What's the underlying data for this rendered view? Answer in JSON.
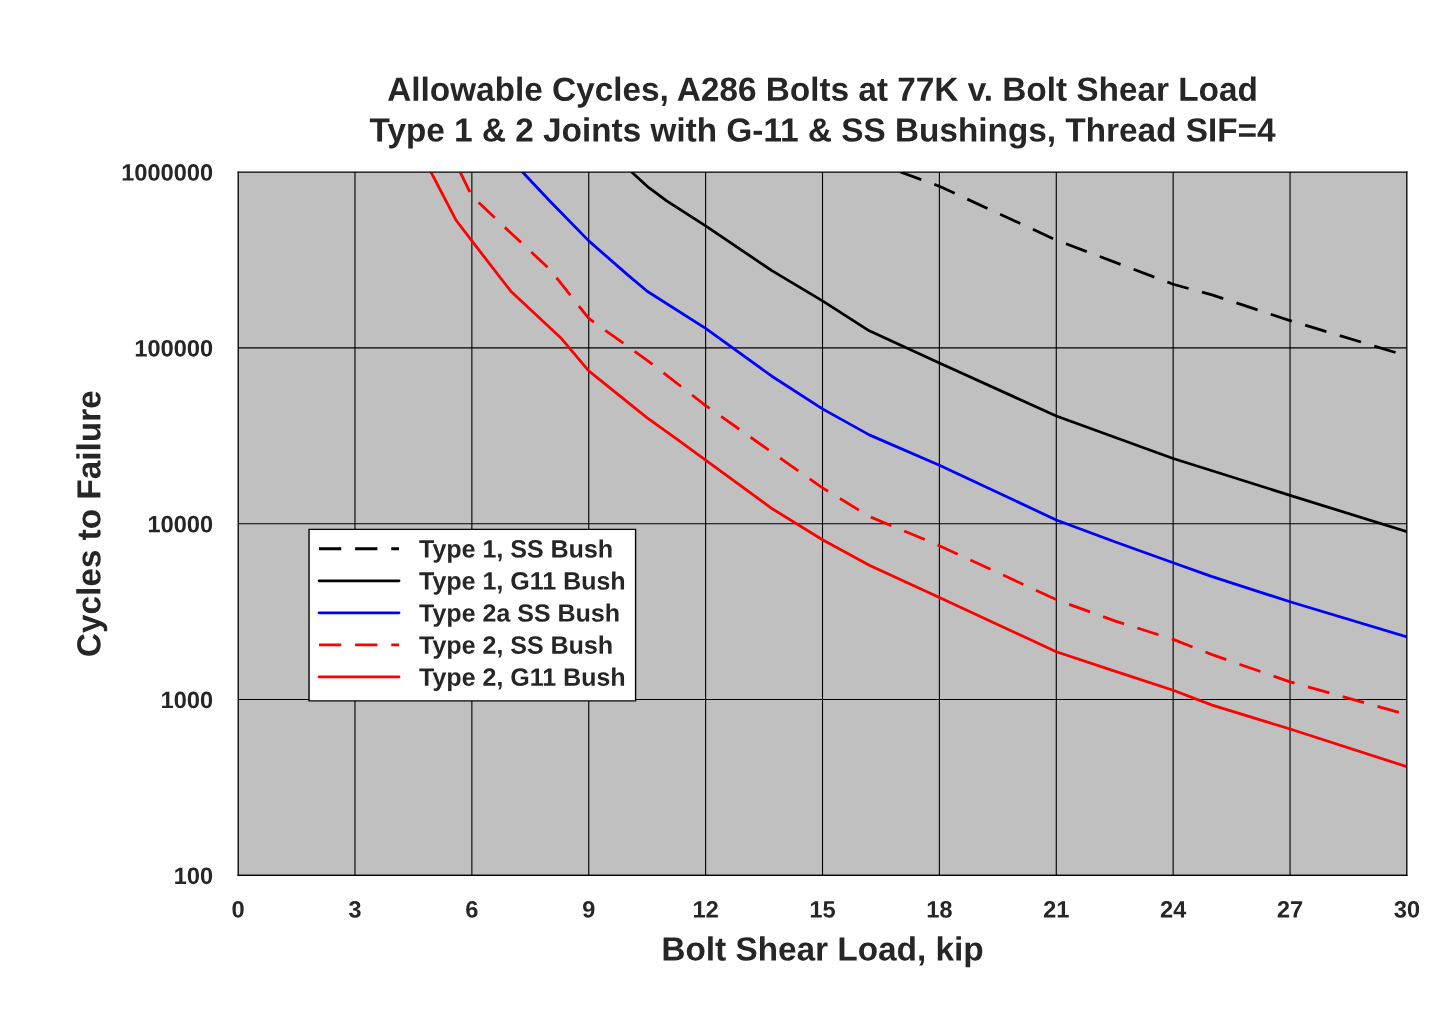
{
  "chart_data": {
    "type": "line",
    "title": "Allowable Cycles, A286 Bolts at 77K v. Bolt Shear Load\nType 1 & 2 Joints with G-11 & SS Bushings, Thread SIF=4",
    "xlabel": "Bolt Shear Load, kip",
    "ylabel": "Cycles to Failure",
    "log": "y",
    "grid": true,
    "legend": "center left",
    "xlim": [
      0,
      30
    ],
    "xticks": [
      0,
      3,
      6,
      9,
      12,
      15,
      18,
      21,
      24,
      27,
      30
    ],
    "ylim": [
      100,
      1000000
    ],
    "yticks": [
      100,
      1000,
      10000,
      100000,
      1000000
    ],
    "series": [
      {
        "name": "Type 1, SS Bush",
        "color": "#000000",
        "line_style": "dashed",
        "x": [
          17,
          18,
          21,
          24,
          25,
          27,
          30
        ],
        "values": [
          1000000,
          830000,
          410000,
          230000,
          200000,
          143000,
          90000
        ]
      },
      {
        "name": "Type 1, G11 Bush",
        "color": "#000000",
        "line_style": "solid",
        "x": [
          10.1,
          10.5,
          11,
          12,
          13.7,
          15,
          16.2,
          18,
          21,
          22.5,
          24,
          25,
          27,
          30
        ],
        "values": [
          1000000,
          830000,
          685000,
          494000,
          275000,
          185000,
          125000,
          82000,
          41000,
          31000,
          23500,
          20000,
          14500,
          9000
        ]
      },
      {
        "name": "Type 2a SS Bush",
        "color": "#0000ff",
        "line_style": "solid",
        "x": [
          7.3,
          8,
          9,
          10,
          10.5,
          12,
          13.7,
          15,
          16.2,
          18,
          21,
          22.5,
          24,
          25,
          27,
          30
        ],
        "values": [
          1000000,
          685000,
          406000,
          260000,
          210000,
          129000,
          69000,
          45000,
          32000,
          21500,
          10500,
          7900,
          6000,
          5000,
          3600,
          2270
        ]
      },
      {
        "name": "Type 2, SS Bush",
        "color": "#ff0000",
        "line_style": "dashed",
        "x": [
          5.7,
          6,
          7,
          8,
          9,
          10.5,
          12,
          13.7,
          15,
          16.2,
          18,
          21,
          22.5,
          24,
          25,
          27,
          30
        ],
        "values": [
          1000000,
          730000,
          450000,
          280000,
          147000,
          85000,
          47000,
          25500,
          16000,
          11000,
          7500,
          3700,
          2800,
          2200,
          1800,
          1260,
          820
        ]
      },
      {
        "name": "Type 2, G11 Bush",
        "color": "#ff0000",
        "line_style": "solid",
        "x": [
          4.95,
          5.6,
          6,
          7,
          8.3,
          9,
          10.5,
          11.2,
          12,
          13.7,
          15,
          16.2,
          18,
          21,
          22.5,
          24,
          25,
          27,
          30
        ],
        "values": [
          1000000,
          530000,
          406000,
          210000,
          113000,
          74000,
          40000,
          31000,
          23000,
          12200,
          8100,
          5800,
          3800,
          1870,
          1450,
          1130,
          930,
          680,
          415
        ]
      }
    ]
  }
}
